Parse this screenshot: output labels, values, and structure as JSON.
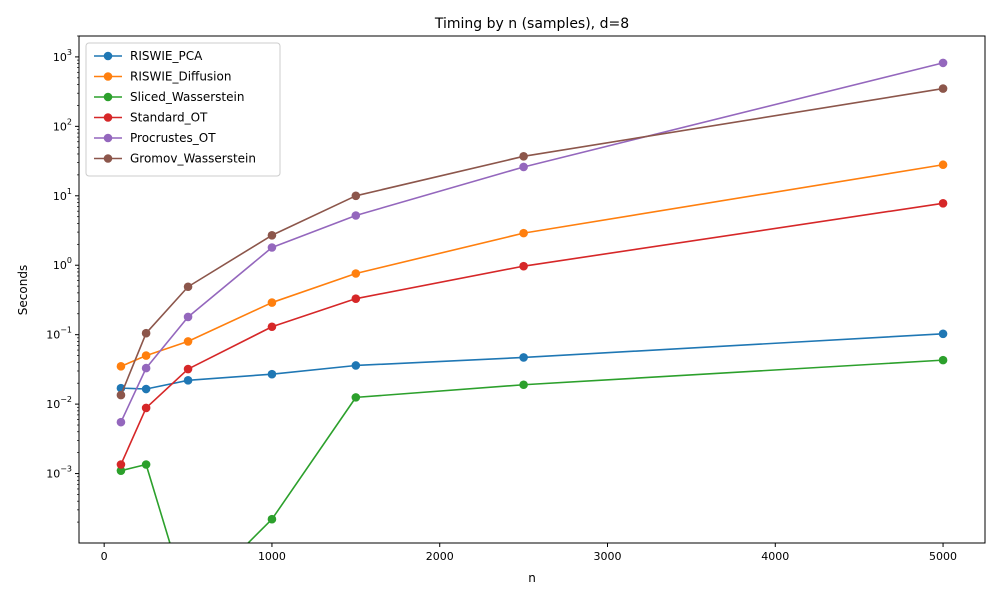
{
  "chart_data": {
    "type": "line",
    "title": "Timing by n (samples), d=8",
    "xlabel": "n",
    "ylabel": "Seconds",
    "xscale": "linear",
    "yscale": "log",
    "xlim": [
      -150,
      5250
    ],
    "ylim": [
      0.0001,
      2000
    ],
    "x_ticks": [
      0,
      1000,
      2000,
      3000,
      4000,
      5000
    ],
    "x_tick_labels": [
      "0",
      "1000",
      "2000",
      "3000",
      "4000",
      "5000"
    ],
    "y_ticks": [
      0.001,
      0.01,
      0.1,
      1,
      10,
      100,
      1000
    ],
    "y_tick_labels": [
      {
        "base": "10",
        "exp": "−3"
      },
      {
        "base": "10",
        "exp": "−2"
      },
      {
        "base": "10",
        "exp": "−1"
      },
      {
        "base": "10",
        "exp": "0"
      },
      {
        "base": "10",
        "exp": "1"
      },
      {
        "base": "10",
        "exp": "2"
      },
      {
        "base": "10",
        "exp": "3"
      }
    ],
    "grid": false,
    "legend_position": "top-left",
    "x": [
      100,
      250,
      500,
      1000,
      1500,
      2500,
      5000
    ],
    "series": [
      {
        "name": "RISWIE_PCA",
        "color": "#1f77b4",
        "values": [
          0.017,
          0.0165,
          0.022,
          0.027,
          0.036,
          0.047,
          0.103
        ]
      },
      {
        "name": "RISWIE_Diffusion",
        "color": "#ff7f0e",
        "values": [
          0.035,
          0.05,
          0.08,
          0.29,
          0.76,
          2.9,
          28
        ]
      },
      {
        "name": "Sliced_Wasserstein",
        "color": "#2ca02c",
        "values": [
          0.0011,
          0.00135,
          0.0,
          0.00022,
          0.0125,
          0.019,
          0.043
        ]
      },
      {
        "name": "Standard_OT",
        "color": "#d62728",
        "values": [
          0.00135,
          0.0088,
          0.032,
          0.13,
          0.33,
          0.97,
          7.8
        ]
      },
      {
        "name": "Procrustes_OT",
        "color": "#9467bd",
        "values": [
          0.0055,
          0.033,
          0.18,
          1.8,
          5.2,
          26,
          820
        ]
      },
      {
        "name": "Gromov_Wasserstein",
        "color": "#8c564b",
        "values": [
          0.0135,
          0.105,
          0.49,
          2.7,
          10,
          37,
          350
        ]
      }
    ]
  }
}
